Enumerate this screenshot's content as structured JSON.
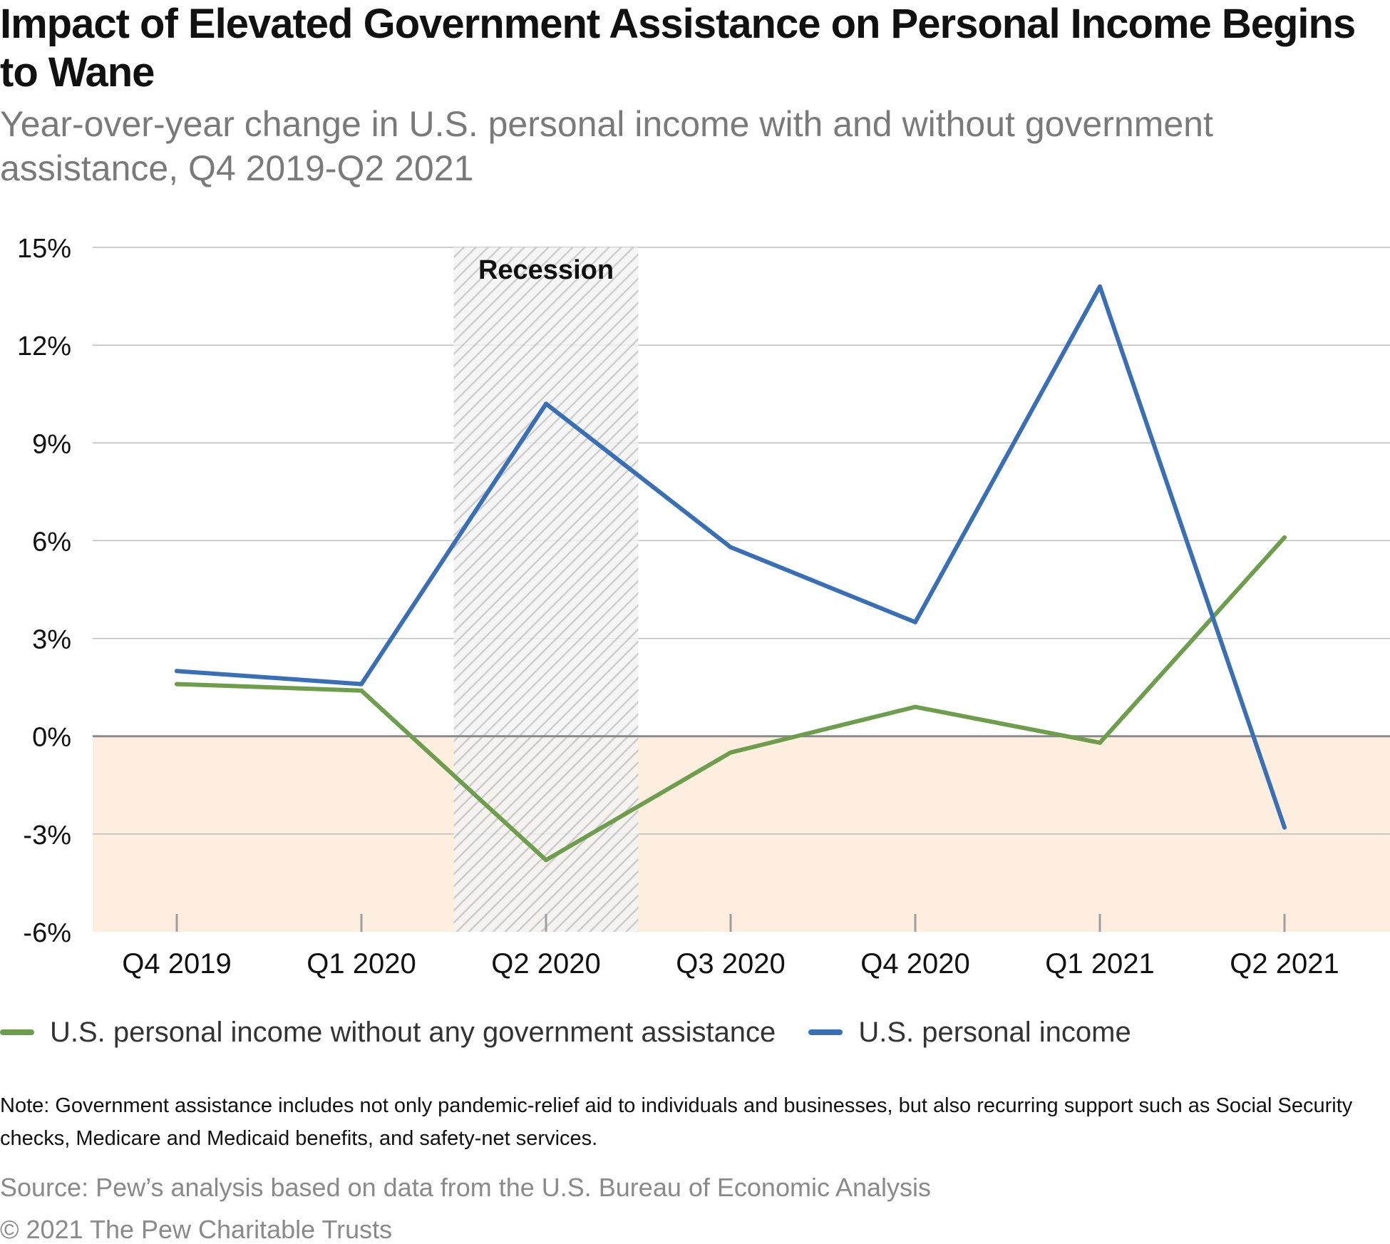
{
  "chart_data": {
    "type": "line",
    "title": "Impact of Elevated Government Assistance on Personal Income Begins to Wane",
    "subtitle": "Year-over-year change in U.S. personal income with and without government assistance, Q4 2019-Q2 2021",
    "categories": [
      "Q4 2019",
      "Q1 2020",
      "Q2 2020",
      "Q3 2020",
      "Q4 2020",
      "Q1 2021",
      "Q2 2021"
    ],
    "y_ticks": [
      "15%",
      "12%",
      "9%",
      "6%",
      "3%",
      "0%",
      "-3%",
      "-6%"
    ],
    "y_tick_values": [
      15,
      12,
      9,
      6,
      3,
      0,
      -3,
      -6
    ],
    "ylim": [
      -6,
      15
    ],
    "grid": true,
    "negative_region_color": "#fdeee0",
    "recession": {
      "label": "Recession",
      "start_category": "Q2 2020",
      "span_categories": 1
    },
    "series": [
      {
        "name": "U.S. personal income without any government assistance",
        "color": "#6e9d4e",
        "values": [
          1.6,
          1.4,
          -3.8,
          -0.5,
          0.9,
          -0.2,
          6.1
        ]
      },
      {
        "name": "U.S. personal income",
        "color": "#3a6fb5",
        "values": [
          2.0,
          1.6,
          10.2,
          5.8,
          3.5,
          13.8,
          -2.8
        ]
      }
    ],
    "legend_position": "bottom-left",
    "note": "Note: Government assistance includes not only pandemic-relief aid to individuals and businesses, but also recurring support such as Social Security checks, Medicare and Medicaid benefits, and safety-net services.",
    "source": "Source: Pew’s analysis based on data from the U.S. Bureau of Economic Analysis",
    "copyright": "© 2021 The Pew Charitable Trusts"
  }
}
